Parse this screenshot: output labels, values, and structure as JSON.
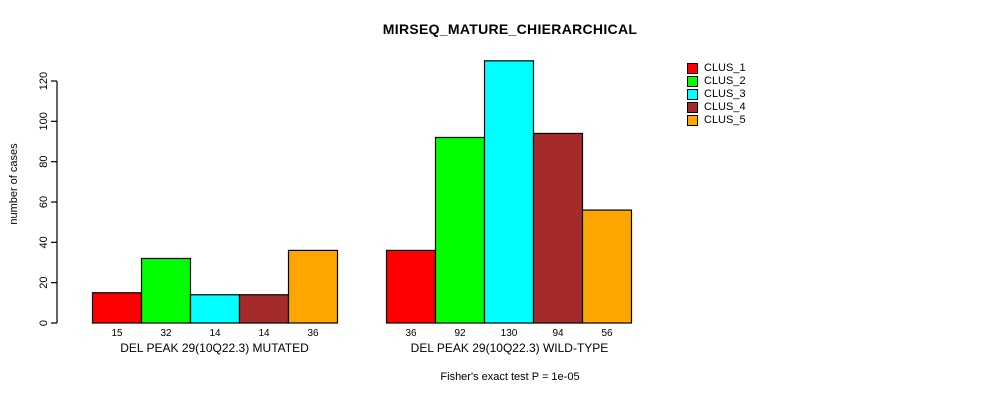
{
  "chart_data": {
    "type": "bar",
    "title": "MIRSEQ_MATURE_CHIERARCHICAL",
    "ylabel": "number of cases",
    "xlabel": "",
    "ylim": [
      0,
      130
    ],
    "yticks": [
      0,
      20,
      40,
      60,
      80,
      100,
      120
    ],
    "grid": false,
    "bar_border_color": "#000000",
    "categories": [
      "CLUS_1",
      "CLUS_2",
      "CLUS_3",
      "CLUS_4",
      "CLUS_5"
    ],
    "colors": [
      "#ff0000",
      "#00ff00",
      "#00ffff",
      "#a52a2a",
      "#ffa500"
    ],
    "groups": [
      {
        "label": "DEL PEAK 29(10Q22.3) MUTATED",
        "values": [
          15,
          32,
          14,
          14,
          36
        ]
      },
      {
        "label": "DEL PEAK 29(10Q22.3) WILD-TYPE",
        "values": [
          36,
          92,
          130,
          94,
          56
        ]
      }
    ],
    "legend": {
      "position": "top-right",
      "entries": [
        {
          "label": "CLUS_1",
          "color": "#ff0000"
        },
        {
          "label": "CLUS_2",
          "color": "#00ff00"
        },
        {
          "label": "CLUS_3",
          "color": "#00ffff"
        },
        {
          "label": "CLUS_4",
          "color": "#a52a2a"
        },
        {
          "label": "CLUS_5",
          "color": "#ffa500"
        }
      ]
    },
    "footnote": "Fisher's exact test P = 1e-05"
  }
}
